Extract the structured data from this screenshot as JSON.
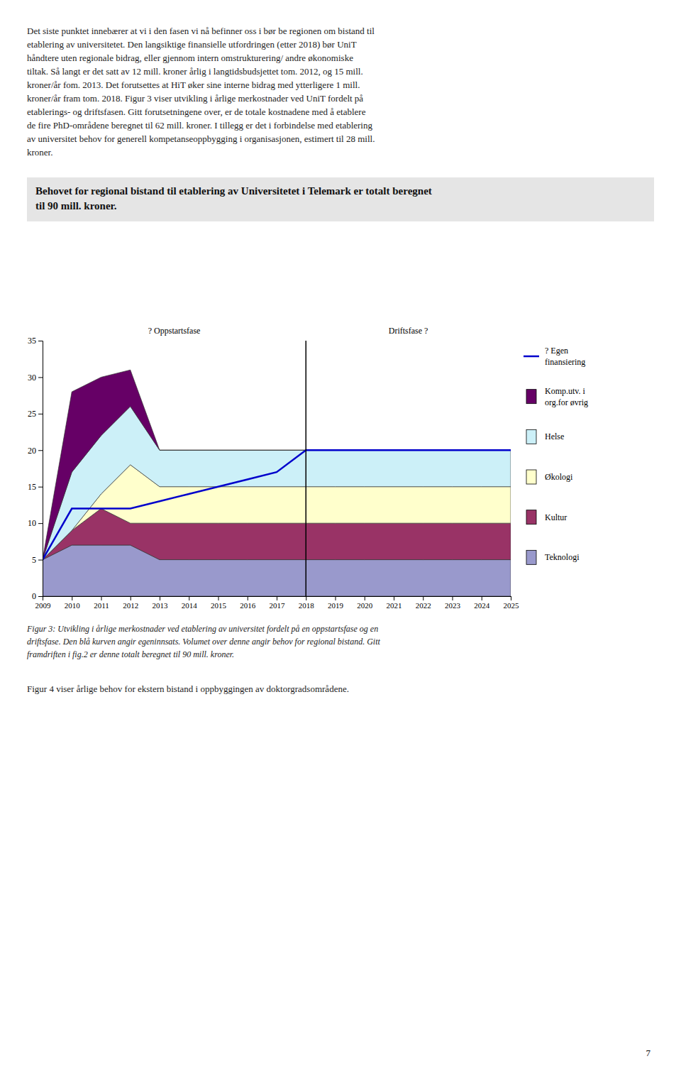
{
  "page": {
    "body_text": "Det siste punktet innebærer at vi i den fasen vi nå befinner oss i bør be regionen om bistand til\netablering av universitetet. Den langsiktige finansielle utfordringen (etter 2018) bør UniT\nhåndtere uten regionale bidrag, eller gjennom intern omstrukturering/ andre økonomiske\ntiltak. Så langt er det satt av 12 mill. kroner årlig i langtidsbudsjettet tom. 2012, og 15 mill.\nkroner/år fom. 2013. Det forutsettes at HiT øker sine interne bidrag med ytterligere 1 mill.\nkroner/år fram tom. 2018. Figur 3 viser utvikling i årlige merkostnader ved UniT fordelt på\netablerings- og driftsfasen. Gitt forutsetningene over, er de totale kostnadene med å etablere\nde fire PhD-områdene beregnet til 62 mill. kroner. I tillegg er det i forbindelse med etablering\nav universitet behov for generell kompetanseoppbygging i organisasjonen, estimert til 28 mill.\nkroner.",
    "header_text": "Behovet for regional bistand til etablering av Universitetet i Telemark er totalt beregnet\ntil 90 mill. kroner.",
    "caption": "Figur 3: Utvikling i årlige merkostnader ved etablering av universitet fordelt på en oppstartsfase og en\ndriftsfase. Den blå kurven angir egeninnsats. Volumet over denne angir behov for regional bistand. Gitt\nframdriften i fig.2 er denne totalt beregnet til 90 mill. kroner.",
    "footer": "Figur 4 viser årlige behov for ekstern bistand i oppbyggingen av doktorgradsområdene.",
    "page_number": "7"
  },
  "chart_data": {
    "type": "area",
    "stacked": true,
    "legend": "right",
    "x": [
      2009,
      2010,
      2011,
      2012,
      2013,
      2014,
      2015,
      2016,
      2017,
      2018,
      2019,
      2020,
      2021,
      2022,
      2023,
      2024,
      2025
    ],
    "xlim": [
      2009,
      2025
    ],
    "xticks": [
      2009,
      2010,
      2011,
      2012,
      2013,
      2014,
      2015,
      2016,
      2017,
      2018,
      2019,
      2020,
      2021,
      2022,
      2023,
      2024,
      2025
    ],
    "ylim": [
      0,
      35
    ],
    "yticks": [
      0,
      5,
      10,
      15,
      20,
      25,
      30,
      35
    ],
    "series": [
      {
        "name": "Teknologi",
        "color": "#9999cc",
        "values": [
          5,
          7,
          7,
          7,
          5,
          5,
          5,
          5,
          5,
          5,
          5,
          5,
          5,
          5,
          5,
          5,
          5
        ]
      },
      {
        "name": "Kultur",
        "color": "#993366",
        "values": [
          0,
          2,
          5,
          3,
          5,
          5,
          5,
          5,
          5,
          5,
          5,
          5,
          5,
          5,
          5,
          5,
          5
        ]
      },
      {
        "name": "Økologi",
        "color": "#ffffcc",
        "values": [
          0,
          0,
          2,
          8,
          5,
          5,
          5,
          5,
          5,
          5,
          5,
          5,
          5,
          5,
          5,
          5,
          5
        ]
      },
      {
        "name": "Helse",
        "color": "#ccf0f8",
        "values": [
          0,
          8,
          8,
          8,
          5,
          5,
          5,
          5,
          5,
          5,
          5,
          5,
          5,
          5,
          5,
          5,
          5
        ]
      },
      {
        "name": "Komp.utv. i\norg.for øvrig",
        "color": "#660066",
        "values": [
          0,
          11,
          8,
          5,
          0,
          0,
          0,
          0,
          0,
          0,
          0,
          0,
          0,
          0,
          0,
          0,
          0
        ]
      },
      {
        "name": "?   Egen\nfinansiering",
        "type": "line",
        "color": "#0000cc",
        "values": [
          5,
          12,
          12,
          12,
          13,
          14,
          15,
          16,
          17,
          20,
          20,
          20,
          20,
          20,
          20,
          20,
          20
        ]
      }
    ],
    "vlines": [
      2018
    ],
    "annotations": [
      {
        "text": "?   Oppstartsfase"
      },
      {
        "text": "Driftsfase  ?"
      }
    ]
  }
}
